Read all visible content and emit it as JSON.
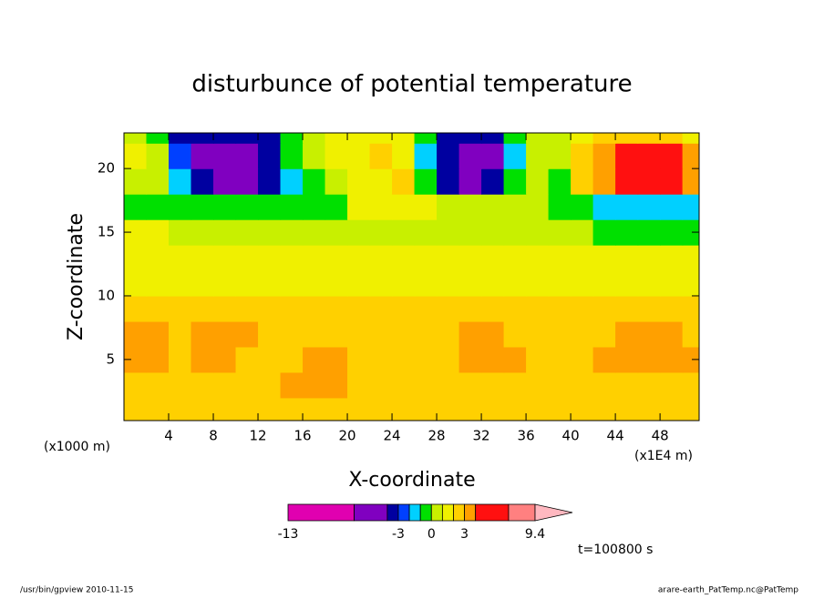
{
  "chart_data": {
    "type": "contour",
    "title": "disturbunce of potential temperature",
    "xlabel": "X-coordinate",
    "ylabel": "Z-coordinate",
    "x_scale_label": "(x1E4 m)",
    "y_scale_label": "(x1000 m)",
    "xlim": [
      0,
      51.5
    ],
    "ylim": [
      0.2,
      22.8
    ],
    "xticks": [
      4,
      8,
      12,
      16,
      20,
      24,
      28,
      32,
      36,
      40,
      44,
      48
    ],
    "yticks": [
      5,
      10,
      15,
      20
    ],
    "x": [
      1,
      3,
      5,
      7,
      9,
      11,
      13,
      15,
      17,
      19,
      21,
      23,
      25,
      27,
      29,
      31,
      33,
      35,
      37,
      39,
      41,
      43,
      45,
      47,
      49,
      51
    ],
    "z_coords": [
      1,
      3,
      5,
      7,
      9,
      11,
      13,
      15,
      17,
      19,
      21,
      23
    ],
    "z": [
      [
        2.5,
        2.5,
        2.5,
        2.5,
        2.5,
        2.5,
        2.5,
        2.5,
        2.5,
        2.5,
        2.5,
        2.5,
        2.5,
        2.5,
        2.5,
        2.5,
        2.5,
        2.5,
        2.5,
        2.5,
        2.5,
        2.5,
        2.5,
        2.5,
        2.5,
        2.5
      ],
      [
        2.5,
        2.5,
        2.5,
        2.5,
        2.5,
        2.5,
        2.5,
        3.3,
        3.3,
        3.3,
        2.5,
        2.5,
        2.5,
        2.5,
        2.5,
        2.5,
        2.5,
        2.5,
        2.5,
        2.5,
        2.5,
        2.5,
        2.5,
        2.5,
        2.5,
        2.5
      ],
      [
        3.3,
        3.3,
        2.5,
        3.3,
        3.3,
        2.5,
        2.5,
        2.5,
        3.3,
        3.3,
        2.5,
        2.5,
        2.5,
        2.5,
        2.5,
        3.3,
        3.3,
        3.3,
        2.5,
        2.5,
        2.5,
        3.3,
        3.3,
        3.3,
        3.3,
        3.3
      ],
      [
        3.3,
        3.3,
        2.5,
        3.3,
        3.3,
        3.3,
        2.5,
        2.5,
        2.5,
        2.5,
        2.5,
        2.5,
        2.5,
        2.5,
        2.5,
        3.3,
        3.3,
        2.5,
        2.5,
        2.5,
        2.5,
        2.5,
        3.3,
        3.3,
        3.3,
        2.5
      ],
      [
        2.5,
        2.5,
        2.5,
        2.5,
        2.5,
        2.5,
        2.5,
        2.5,
        2.5,
        2.5,
        2.5,
        2.5,
        2.5,
        2.5,
        2.5,
        2.5,
        2.5,
        2.5,
        2.5,
        2.5,
        2.5,
        2.5,
        2.5,
        2.5,
        2.5,
        2.5
      ],
      [
        1.5,
        1.5,
        1.5,
        1.5,
        1.5,
        1.5,
        1.5,
        1.5,
        1.5,
        1.5,
        1.5,
        1.5,
        1.5,
        1.5,
        1.5,
        1.5,
        1.5,
        1.5,
        1.5,
        1.5,
        1.5,
        1.5,
        1.5,
        1.5,
        1.5,
        1.5
      ],
      [
        1.5,
        1.5,
        1.5,
        1.5,
        1.5,
        1.5,
        1.5,
        1.5,
        1.5,
        1.5,
        1.5,
        1.5,
        1.5,
        1.5,
        1.5,
        1.5,
        1.5,
        1.5,
        1.5,
        1.5,
        1.5,
        1.5,
        1.5,
        1.5,
        1.5,
        1.5
      ],
      [
        1.5,
        1.5,
        0.5,
        0.5,
        0.5,
        0.5,
        0.5,
        0.5,
        0.5,
        0.5,
        0.5,
        0.5,
        0.5,
        0.5,
        0.5,
        0.5,
        0.5,
        0.5,
        0.5,
        0.5,
        0.5,
        -0.5,
        -0.5,
        -0.5,
        -0.5,
        -0.5
      ],
      [
        -0.5,
        -0.5,
        -0.5,
        -0.5,
        -0.5,
        -0.5,
        -0.5,
        -0.5,
        -0.5,
        -0.5,
        1.5,
        1.5,
        1.5,
        1.5,
        0.5,
        0.5,
        0.5,
        0.5,
        0.5,
        -0.5,
        -0.5,
        -1.5,
        -1.5,
        -1.5,
        -1.5,
        -1.5
      ],
      [
        0.5,
        0.5,
        -1.5,
        -3.5,
        -5,
        -5,
        -3.5,
        -1.5,
        -0.5,
        0.5,
        1.5,
        1.5,
        2.5,
        -0.5,
        -3.5,
        -5,
        -3.5,
        -0.5,
        0.5,
        -0.5,
        2.5,
        3.5,
        5,
        5,
        5,
        3.5
      ],
      [
        1.5,
        0.5,
        -2.5,
        -5,
        -5,
        -5,
        -3.5,
        -0.5,
        0.5,
        1.5,
        1.5,
        2.5,
        1.5,
        -1.5,
        -3.5,
        -5,
        -5,
        -1.5,
        0.5,
        0.5,
        2.5,
        3.5,
        5,
        5,
        5,
        3.5
      ],
      [
        0.5,
        -0.5,
        -3.5,
        -3.5,
        -3.5,
        -3.5,
        -3.5,
        -0.5,
        0.5,
        1.5,
        1.5,
        1.5,
        1.5,
        -0.5,
        -3.5,
        -3.5,
        -3.5,
        -0.5,
        0.5,
        0.5,
        1.5,
        2.5,
        2.5,
        2.5,
        2.5,
        1.5
      ]
    ],
    "colorbar": {
      "bounds": [
        -13,
        -7,
        -4,
        -3,
        -2,
        -1,
        0,
        1,
        2,
        3,
        4,
        7,
        9.4
      ],
      "colors": [
        "#e000b0",
        "#8000c0",
        "#0000a0",
        "#0040ff",
        "#00d0ff",
        "#00e000",
        "#c8f000",
        "#f0f000",
        "#ffd000",
        "#ffa000",
        "#ff1010",
        "#ff8080"
      ],
      "extend_color": "#ffb8c0",
      "ticks": [
        -13,
        -3,
        0,
        3,
        9.4
      ]
    },
    "time_label": "t=100800 s",
    "footer_left": "/usr/bin/gpview  2010-11-15",
    "footer_right": "arare-earth_PatTemp.nc@PatTemp"
  }
}
